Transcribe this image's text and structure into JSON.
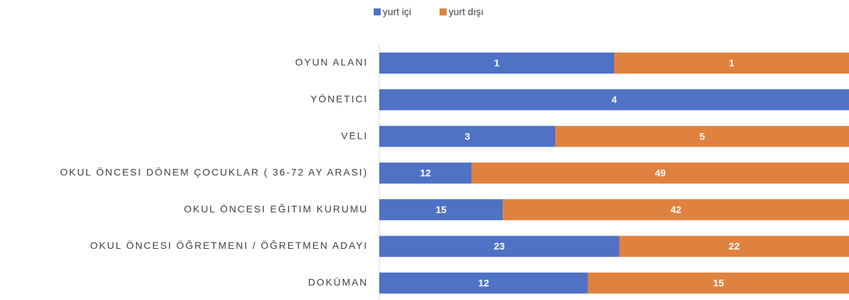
{
  "chart_data": {
    "type": "bar_100_stacked",
    "orientation": "horizontal",
    "categories": [
      "OYUN ALANI",
      "YÖNETICI",
      "VELI",
      "OKUL ÖNCESI DÖNEM ÇOCUKLAR ( 36-72 AY ARASI)",
      "OKUL ÖNCESI EĞITIM KURUMU",
      "OKUL ÖNCESI ÖĞRETMENI / ÖĞRETMEN ADAYI",
      "DOKÜMAN"
    ],
    "series": [
      {
        "name": "yurt içi",
        "color": "#4f72c4",
        "values": [
          1,
          4,
          3,
          12,
          15,
          23,
          12
        ]
      },
      {
        "name": "yurt dışı",
        "color": "#e0823f",
        "values": [
          1,
          null,
          5,
          49,
          42,
          22,
          15
        ]
      }
    ],
    "legend": "top",
    "data_labels": true
  }
}
